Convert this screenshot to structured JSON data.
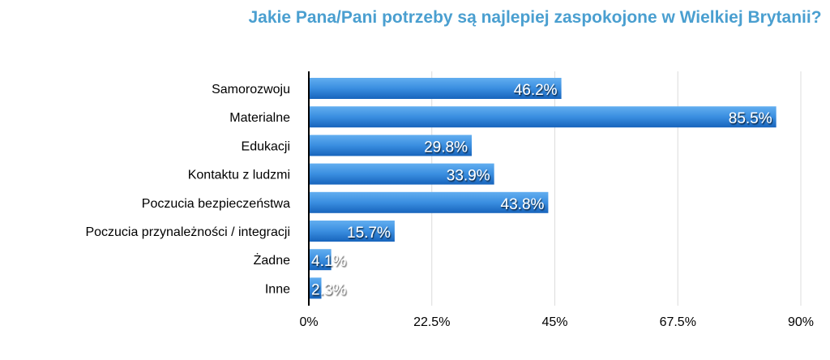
{
  "chart_data": {
    "type": "bar",
    "orientation": "horizontal",
    "title": "Jakie Pana/Pani potrzeby są najlepiej zaspokojone w Wielkiej Brytanii?",
    "categories": [
      "Samorozwoju",
      "Materialne",
      "Edukacji",
      "Kontaktu z ludzmi",
      "Poczucia bezpieczeństwa",
      "Poczucia przynależności / integracji",
      "Żadne",
      "Inne"
    ],
    "values": [
      46.2,
      85.5,
      29.8,
      33.9,
      43.8,
      15.7,
      4.1,
      2.3
    ],
    "value_labels": [
      "46.2%",
      "85.5%",
      "29.8%",
      "33.9%",
      "43.8%",
      "15.7%",
      "4.1%",
      "2.3%"
    ],
    "xlim": [
      0,
      90
    ],
    "x_ticks": [
      0,
      22.5,
      45,
      67.5,
      90
    ],
    "x_tick_labels": [
      "0%",
      "22.5%",
      "45%",
      "67.5%",
      "90%"
    ],
    "grid": true,
    "legend": "none",
    "colors": {
      "bar_top": "#5aa8ec",
      "bar_bottom": "#1a68c0",
      "title": "#4a9fd0",
      "grid": "#dcdcdc"
    }
  }
}
